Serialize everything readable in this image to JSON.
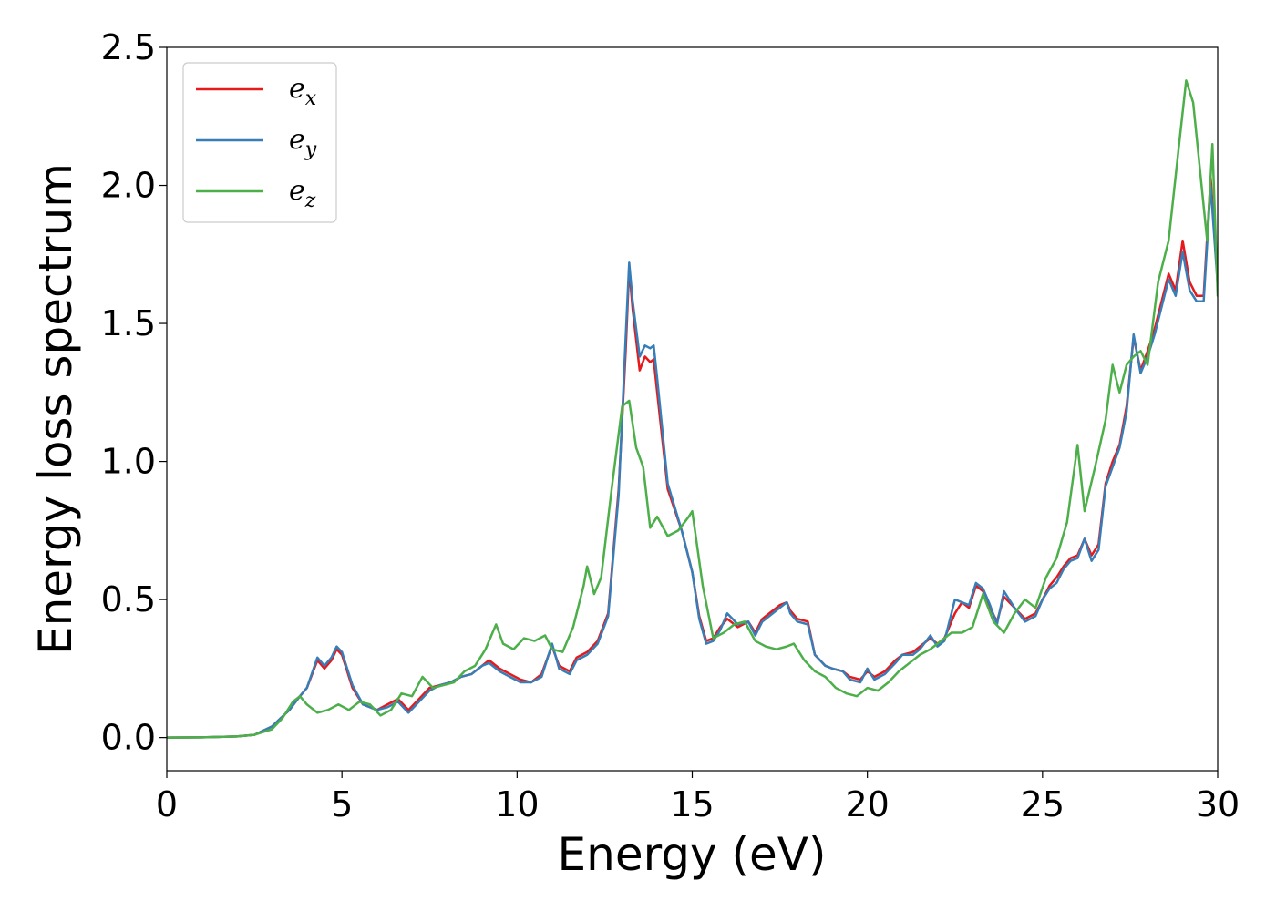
{
  "chart_data": {
    "type": "line",
    "title": "",
    "xlabel": "Energy (eV)",
    "ylabel": "Energy loss spectrum",
    "xlim": [
      0,
      30
    ],
    "ylim": [
      -0.12,
      2.5
    ],
    "xticks": [
      0,
      5,
      10,
      15,
      20,
      25,
      30
    ],
    "xtick_labels": [
      "0",
      "5",
      "10",
      "15",
      "20",
      "25",
      "30"
    ],
    "yticks": [
      0.0,
      0.5,
      1.0,
      1.5,
      2.0,
      2.5
    ],
    "ytick_labels": [
      "0.0",
      "0.5",
      "1.0",
      "1.5",
      "2.0",
      "2.5"
    ],
    "grid": false,
    "legend": {
      "position": "top-left",
      "entries": [
        {
          "base": "e",
          "sub": "x",
          "color": "#e41a1c"
        },
        {
          "base": "e",
          "sub": "y",
          "color": "#377eb8"
        },
        {
          "base": "e",
          "sub": "z",
          "color": "#4daf4a"
        }
      ]
    },
    "series": [
      {
        "name": "e_x",
        "color": "#e41a1c",
        "x": [
          0,
          1,
          2,
          2.5,
          3,
          3.5,
          3.8,
          4.0,
          4.3,
          4.5,
          4.7,
          4.85,
          5.0,
          5.3,
          5.6,
          6.0,
          6.3,
          6.6,
          6.9,
          7.2,
          7.5,
          7.8,
          8.1,
          8.4,
          8.7,
          9.0,
          9.2,
          9.5,
          9.8,
          10.1,
          10.4,
          10.7,
          10.9,
          11.0,
          11.2,
          11.5,
          11.7,
          12.0,
          12.3,
          12.6,
          12.9,
          13.1,
          13.2,
          13.3,
          13.5,
          13.65,
          13.8,
          13.9,
          14.0,
          14.3,
          14.7,
          15.0,
          15.2,
          15.4,
          15.6,
          15.8,
          16.0,
          16.3,
          16.6,
          16.8,
          17.0,
          17.3,
          17.5,
          17.7,
          17.8,
          18.0,
          18.3,
          18.5,
          18.8,
          19.0,
          19.3,
          19.5,
          19.8,
          20.0,
          20.2,
          20.5,
          20.8,
          21.0,
          21.3,
          21.5,
          21.8,
          22.0,
          22.2,
          22.5,
          22.7,
          22.9,
          23.1,
          23.3,
          23.5,
          23.7,
          23.9,
          24.2,
          24.5,
          24.8,
          25.0,
          25.2,
          25.4,
          25.6,
          25.8,
          26.0,
          26.2,
          26.4,
          26.6,
          26.8,
          27.0,
          27.2,
          27.4,
          27.6,
          27.8,
          28.0,
          28.2,
          28.4,
          28.6,
          28.8,
          29.0,
          29.2,
          29.4,
          29.6,
          29.8,
          30.0
        ],
        "y": [
          0,
          0.001,
          0.004,
          0.01,
          0.04,
          0.1,
          0.15,
          0.18,
          0.28,
          0.25,
          0.28,
          0.32,
          0.3,
          0.18,
          0.12,
          0.1,
          0.12,
          0.14,
          0.1,
          0.14,
          0.18,
          0.19,
          0.2,
          0.22,
          0.23,
          0.26,
          0.28,
          0.25,
          0.23,
          0.21,
          0.2,
          0.23,
          0.3,
          0.33,
          0.26,
          0.24,
          0.29,
          0.31,
          0.35,
          0.45,
          0.9,
          1.4,
          1.7,
          1.55,
          1.33,
          1.38,
          1.36,
          1.37,
          1.25,
          0.9,
          0.75,
          0.6,
          0.44,
          0.35,
          0.36,
          0.4,
          0.43,
          0.4,
          0.42,
          0.38,
          0.43,
          0.46,
          0.48,
          0.49,
          0.46,
          0.43,
          0.42,
          0.3,
          0.26,
          0.25,
          0.24,
          0.22,
          0.21,
          0.24,
          0.22,
          0.24,
          0.28,
          0.3,
          0.31,
          0.33,
          0.36,
          0.34,
          0.36,
          0.45,
          0.49,
          0.47,
          0.55,
          0.53,
          0.47,
          0.42,
          0.51,
          0.47,
          0.43,
          0.45,
          0.5,
          0.55,
          0.58,
          0.62,
          0.65,
          0.66,
          0.72,
          0.66,
          0.7,
          0.92,
          1.0,
          1.06,
          1.2,
          1.45,
          1.33,
          1.4,
          1.48,
          1.58,
          1.68,
          1.62,
          1.8,
          1.65,
          1.6,
          1.6,
          2.03,
          1.65
        ]
      },
      {
        "name": "e_y",
        "color": "#377eb8",
        "x": [
          0,
          1,
          2,
          2.5,
          3,
          3.5,
          3.8,
          4.0,
          4.3,
          4.5,
          4.7,
          4.85,
          5.0,
          5.3,
          5.6,
          6.0,
          6.3,
          6.6,
          6.9,
          7.2,
          7.5,
          7.8,
          8.1,
          8.4,
          8.7,
          9.0,
          9.2,
          9.5,
          9.8,
          10.1,
          10.4,
          10.7,
          10.9,
          11.0,
          11.2,
          11.5,
          11.7,
          12.0,
          12.3,
          12.6,
          12.9,
          13.1,
          13.2,
          13.3,
          13.5,
          13.65,
          13.8,
          13.9,
          14.0,
          14.3,
          14.7,
          15.0,
          15.2,
          15.4,
          15.6,
          15.8,
          16.0,
          16.3,
          16.6,
          16.8,
          17.0,
          17.3,
          17.5,
          17.7,
          17.8,
          18.0,
          18.3,
          18.5,
          18.8,
          19.0,
          19.3,
          19.5,
          19.8,
          20.0,
          20.2,
          20.5,
          20.8,
          21.0,
          21.3,
          21.5,
          21.8,
          22.0,
          22.2,
          22.5,
          22.7,
          22.9,
          23.1,
          23.3,
          23.5,
          23.7,
          23.9,
          24.2,
          24.5,
          24.8,
          25.0,
          25.2,
          25.4,
          25.6,
          25.8,
          26.0,
          26.2,
          26.4,
          26.6,
          26.8,
          27.0,
          27.2,
          27.4,
          27.6,
          27.8,
          28.0,
          28.2,
          28.4,
          28.6,
          28.8,
          29.0,
          29.2,
          29.4,
          29.6,
          29.8,
          30.0
        ],
        "y": [
          0,
          0.001,
          0.004,
          0.01,
          0.04,
          0.1,
          0.15,
          0.18,
          0.29,
          0.26,
          0.29,
          0.33,
          0.31,
          0.19,
          0.12,
          0.1,
          0.11,
          0.13,
          0.09,
          0.13,
          0.17,
          0.19,
          0.2,
          0.22,
          0.23,
          0.26,
          0.27,
          0.24,
          0.22,
          0.2,
          0.2,
          0.22,
          0.3,
          0.34,
          0.25,
          0.23,
          0.28,
          0.3,
          0.34,
          0.44,
          0.88,
          1.45,
          1.72,
          1.58,
          1.38,
          1.42,
          1.41,
          1.42,
          1.3,
          0.92,
          0.75,
          0.6,
          0.43,
          0.34,
          0.35,
          0.39,
          0.45,
          0.41,
          0.42,
          0.37,
          0.42,
          0.45,
          0.47,
          0.49,
          0.45,
          0.42,
          0.41,
          0.3,
          0.26,
          0.25,
          0.24,
          0.21,
          0.2,
          0.25,
          0.21,
          0.23,
          0.27,
          0.3,
          0.3,
          0.32,
          0.37,
          0.33,
          0.35,
          0.5,
          0.49,
          0.48,
          0.56,
          0.54,
          0.48,
          0.41,
          0.53,
          0.47,
          0.42,
          0.44,
          0.5,
          0.54,
          0.56,
          0.61,
          0.64,
          0.65,
          0.72,
          0.64,
          0.68,
          0.91,
          0.98,
          1.05,
          1.18,
          1.46,
          1.32,
          1.38,
          1.46,
          1.56,
          1.66,
          1.6,
          1.76,
          1.62,
          1.58,
          1.58,
          2.0,
          1.64
        ]
      },
      {
        "name": "e_z",
        "color": "#4daf4a",
        "x": [
          0,
          1,
          2,
          2.5,
          3,
          3.3,
          3.6,
          3.8,
          4.0,
          4.3,
          4.6,
          4.9,
          5.2,
          5.5,
          5.8,
          6.1,
          6.4,
          6.7,
          7.0,
          7.3,
          7.6,
          7.9,
          8.2,
          8.5,
          8.8,
          9.1,
          9.4,
          9.6,
          9.9,
          10.2,
          10.5,
          10.8,
          11.0,
          11.3,
          11.6,
          11.9,
          12.0,
          12.2,
          12.4,
          12.7,
          13.0,
          13.2,
          13.4,
          13.6,
          13.8,
          14.0,
          14.3,
          14.6,
          14.9,
          15.0,
          15.3,
          15.6,
          15.9,
          16.2,
          16.5,
          16.8,
          17.1,
          17.4,
          17.7,
          17.9,
          18.2,
          18.5,
          18.8,
          19.1,
          19.4,
          19.7,
          20.0,
          20.3,
          20.6,
          20.9,
          21.2,
          21.5,
          21.8,
          22.1,
          22.4,
          22.7,
          23.0,
          23.3,
          23.6,
          23.9,
          24.2,
          24.5,
          24.8,
          25.1,
          25.4,
          25.7,
          26.0,
          26.2,
          26.5,
          26.8,
          27.0,
          27.2,
          27.4,
          27.6,
          27.8,
          28.0,
          28.3,
          28.6,
          28.9,
          29.1,
          29.3,
          29.5,
          29.7,
          29.85,
          30.0
        ],
        "y": [
          0,
          0.001,
          0.004,
          0.01,
          0.03,
          0.07,
          0.13,
          0.15,
          0.12,
          0.09,
          0.1,
          0.12,
          0.1,
          0.13,
          0.12,
          0.08,
          0.1,
          0.16,
          0.15,
          0.22,
          0.18,
          0.19,
          0.2,
          0.24,
          0.26,
          0.32,
          0.41,
          0.34,
          0.32,
          0.36,
          0.35,
          0.37,
          0.32,
          0.31,
          0.4,
          0.55,
          0.62,
          0.52,
          0.58,
          0.9,
          1.2,
          1.22,
          1.05,
          0.98,
          0.76,
          0.8,
          0.73,
          0.75,
          0.8,
          0.82,
          0.55,
          0.36,
          0.38,
          0.41,
          0.42,
          0.35,
          0.33,
          0.32,
          0.33,
          0.34,
          0.28,
          0.24,
          0.22,
          0.18,
          0.16,
          0.15,
          0.18,
          0.17,
          0.2,
          0.24,
          0.27,
          0.3,
          0.32,
          0.35,
          0.38,
          0.38,
          0.4,
          0.52,
          0.42,
          0.38,
          0.45,
          0.5,
          0.47,
          0.58,
          0.65,
          0.78,
          1.06,
          0.82,
          0.98,
          1.15,
          1.35,
          1.25,
          1.35,
          1.38,
          1.4,
          1.35,
          1.65,
          1.8,
          2.15,
          2.38,
          2.3,
          2.05,
          1.8,
          2.15,
          1.6
        ]
      }
    ]
  }
}
